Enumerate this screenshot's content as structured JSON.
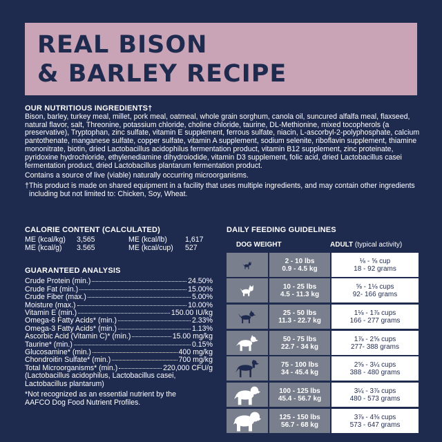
{
  "title": {
    "line1": "REAL BISON",
    "line2": "& BARLEY RECIPE"
  },
  "ingredients": {
    "heading": "OUR NUTRITIOUS INGREDIENTS†",
    "list": "Bison, barley, turkey meal, millet, pork meal, oatmeal, whole grain sorghum, canola oil, suncured alfalfa meal, flaxseed, natural flavor, salt, Threonine, potassium chloride, choline chloride, taurine, DL-Methionine, mixed tocopherols (a preservative), Tryptophan, zinc sulfate, vitamin E supplement, ferrous sulfate, niacin, L-ascorbyl-2-polyphosphate, calcium pantothenate, manganese sulfate, copper sulfate, vitamin A supplement, sodium selenite, riboflavin supplement, thiamine mononitrate, biotin, dried Lactobacillus acidophilus fermentation product, vitamin B12 supplement, zinc proteinate, pyridoxine hydrochloride, ethylenediamine dihydroiodide, vitamin D3 supplement, folic acid, dried Lactobacillus casei fermentation product, dried Lactobacillus plantarum fermentation product.",
    "live_note": "Contains a source of live (viable) naturally occurring microorganisms.",
    "disclaimer": "†This product is made on shared equipment in a facility that uses multiple ingredients, and may contain other ingredients including but not limited to: Chicken, Soy, Wheat."
  },
  "calorie": {
    "heading": "CALORIE CONTENT (CALCULATED)",
    "items": [
      {
        "label": "ME (kcal/kg)",
        "value": "3,565"
      },
      {
        "label": "ME (kcal/lb)",
        "value": "1,617"
      },
      {
        "label": "ME (kcal/g)",
        "value": "3.565"
      },
      {
        "label": "ME (kcal/cup)",
        "value": "527"
      }
    ]
  },
  "analysis": {
    "heading": "GUARANTEED ANALYSIS",
    "rows": [
      {
        "label": "Crude Protein (min.)",
        "value": "24.50%"
      },
      {
        "label": "Crude Fat (min.)",
        "value": "15.00%"
      },
      {
        "label": "Crude Fiber (max.)",
        "value": "5.00%"
      },
      {
        "label": "Moisture (max.)",
        "value": "10.00%"
      },
      {
        "label": "Vitamin E (min.)",
        "value": "150.00 IU/kg"
      },
      {
        "label": "Omega-6 Fatty Acids* (min.)",
        "value": "2.33%"
      },
      {
        "label": "Omega-3 Fatty Acids* (min.)",
        "value": "1.13%"
      },
      {
        "label": "Ascorbic Acid (Vitamin C)* (min.)",
        "value": "15.00 mg/kg"
      },
      {
        "label": "Taurine* (min.)",
        "value": "0.15%"
      },
      {
        "label": "Glucosamine* (min.)",
        "value": "400 mg/kg"
      },
      {
        "label": "Chondroitin Sulfate* (min.)",
        "value": "700 mg/kg"
      },
      {
        "label": "Total Microorganisms* (min.)",
        "value": "220,000 CFU/g"
      }
    ],
    "microorganism_note_1": "(Lactobacillus acidophilus, Lactobacillus casei,",
    "microorganism_note_2": "Lactobacillus plantarum)",
    "footnote_1": "*Not recognized as an essential nutrient by the",
    "footnote_2": "AAFCO Dog Food Nutrient Profiles."
  },
  "feeding": {
    "heading": "DAILY FEEDING GUIDELINES",
    "col_weight": "DOG WEIGHT",
    "col_adult": "ADULT",
    "col_adult_note": "(typical activity)",
    "rows": [
      {
        "lbs": "2 - 10 lbs",
        "kg": "0.9 - 4.5 kg",
        "cups": "⅛ - ⅝ cup",
        "grams": "18 - 92 grams",
        "icon": "tiny-dog-icon"
      },
      {
        "lbs": "10 - 25 lbs",
        "kg": "4.5 - 11.3 kg",
        "cups": "⅝ - 1⅛ cups",
        "grams": "92- 166 grams",
        "icon": "small-dog-icon"
      },
      {
        "lbs": "25 - 50 lbs",
        "kg": "11.3 - 22.7 kg",
        "cups": "1⅛ - 1⅞ cups",
        "grams": "166 - 277 grams",
        "icon": "medium-dog-icon"
      },
      {
        "lbs": "50 - 75 lbs",
        "kg": "22.7 - 34 kg",
        "cups": "1⅞ - 2⅝ cups",
        "grams": "277- 388 grams",
        "icon": "large-dog-icon"
      },
      {
        "lbs": "75 - 100 lbs",
        "kg": "34 - 45.4 kg",
        "cups": "2⅝ - 3¼ cups",
        "grams": "388 - 480 grams",
        "icon": "great-dane-icon"
      },
      {
        "lbs": "100 - 125 lbs",
        "kg": "45.4 - 56.7 kg",
        "cups": "3¼ - 3⅞ cups",
        "grams": "480 - 573 grams",
        "icon": "mastiff-icon"
      },
      {
        "lbs": "125 - 150 lbs",
        "kg": "56.7 - 68 kg",
        "cups": "3⅞ - 4⅜ cups",
        "grams": "573 - 647 grams",
        "icon": "giant-dog-icon"
      }
    ]
  },
  "colors": {
    "background": "#1f2a4f",
    "banner": "#c9a4b6",
    "table_gray": "#7a7f8e"
  }
}
